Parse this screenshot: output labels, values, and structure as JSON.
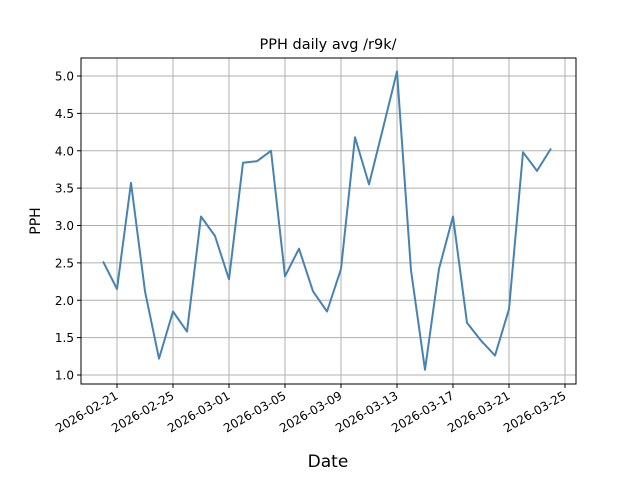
{
  "chart_data": {
    "type": "line",
    "title": "PPH daily avg /r9k/",
    "xlabel": "Date",
    "ylabel": "PPH",
    "ylim": [
      0.88,
      5.27
    ],
    "grid": true,
    "legend": null,
    "color": "#4682b4",
    "x": [
      "2026-02-20",
      "2026-02-21",
      "2026-02-22",
      "2026-02-23",
      "2026-02-24",
      "2026-02-25",
      "2026-02-26",
      "2026-02-27",
      "2026-02-28",
      "2026-03-01",
      "2026-03-02",
      "2026-03-03",
      "2026-03-04",
      "2026-03-05",
      "2026-03-06",
      "2026-03-07",
      "2026-03-08",
      "2026-03-09",
      "2026-03-10",
      "2026-03-11",
      "2026-03-12",
      "2026-03-13",
      "2026-03-14",
      "2026-03-15",
      "2026-03-16",
      "2026-03-17",
      "2026-03-18",
      "2026-03-19",
      "2026-03-20",
      "2026-03-21",
      "2026-03-22",
      "2026-03-23",
      "2026-03-24"
    ],
    "values": [
      2.52,
      2.15,
      3.57,
      2.12,
      1.22,
      1.85,
      1.58,
      3.12,
      2.86,
      2.28,
      3.84,
      3.86,
      4.0,
      2.32,
      2.69,
      2.12,
      1.85,
      2.42,
      4.18,
      3.55,
      4.3,
      5.06,
      2.4,
      1.07,
      2.42,
      3.12,
      1.7,
      1.46,
      1.26,
      1.88,
      3.98,
      3.73,
      4.03
    ],
    "yticks": [
      "1.0",
      "1.5",
      "2.0",
      "2.5",
      "3.0",
      "3.5",
      "4.0",
      "4.5",
      "5.0"
    ],
    "xticks": [
      "2026-02-21",
      "2026-02-25",
      "2026-03-01",
      "2026-03-05",
      "2026-03-09",
      "2026-03-13",
      "2026-03-17",
      "2026-03-21",
      "2026-03-25"
    ]
  }
}
